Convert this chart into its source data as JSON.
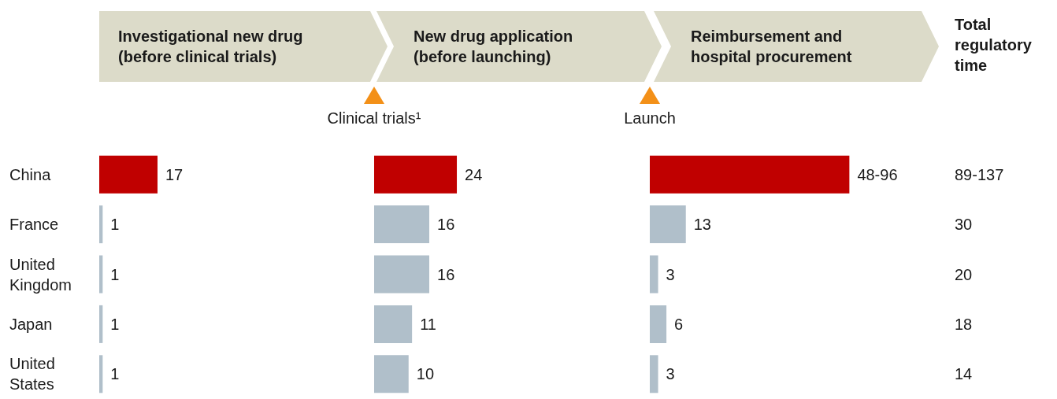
{
  "chart_data": [
    {
      "type": "bar",
      "orientation": "horizontal",
      "title": "Investigational new drug (before clinical trials)",
      "categories": [
        "China",
        "France",
        "United Kingdom",
        "Japan",
        "United States"
      ],
      "values": [
        17,
        1,
        1,
        1,
        1
      ],
      "colors": [
        "#c00000",
        "#b0bfca",
        "#b0bfca",
        "#b0bfca",
        "#b0bfca"
      ],
      "data_labels": true,
      "tick_labels": "y"
    },
    {
      "type": "bar",
      "orientation": "horizontal",
      "title": "New drug application (before launching)",
      "annotations": [
        "Clinical trials¹"
      ],
      "categories": [
        "China",
        "France",
        "United Kingdom",
        "Japan",
        "United States"
      ],
      "values": [
        24,
        16,
        16,
        11,
        10
      ],
      "colors": [
        "#c00000",
        "#b0bfca",
        "#b0bfca",
        "#b0bfca",
        "#b0bfca"
      ],
      "data_labels": true,
      "tick_labels": false
    },
    {
      "type": "bar",
      "orientation": "horizontal",
      "title": "Reimbursement and hospital procurement",
      "annotations": [
        "Launch"
      ],
      "categories": [
        "China",
        "France",
        "United Kingdom",
        "Japan",
        "United States"
      ],
      "values": [
        72,
        13,
        3,
        6,
        3
      ],
      "value_labels": [
        "48-96",
        "13",
        "3",
        "6",
        "3"
      ],
      "colors": [
        "#c00000",
        "#b0bfca",
        "#b0bfca",
        "#b0bfca",
        "#b0bfca"
      ],
      "tick_labels": false
    },
    {
      "type": "other",
      "title": "Total regulatory time",
      "value_labels": [
        "89-137",
        "30",
        "20",
        "18",
        "14"
      ]
    }
  ]
}
